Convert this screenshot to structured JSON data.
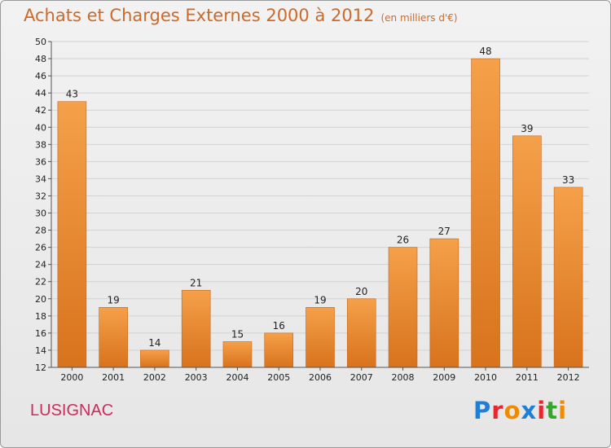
{
  "header": {
    "title": "Achats et Charges Externes 2000 à 2012",
    "subtitle": "(en milliers d'€)"
  },
  "commune": "LUSIGNAC",
  "logo": {
    "text": "Proxiti",
    "colors": [
      "#1f7fd6",
      "#e8262d",
      "#f08a00",
      "#1f7fd6",
      "#e8262d",
      "#36a62a",
      "#f08a00"
    ]
  },
  "chart_data": {
    "type": "bar",
    "title": "Achats et Charges Externes 2000 à 2012",
    "subtitle": "(en milliers d'€)",
    "categories": [
      "2000",
      "2001",
      "2002",
      "2003",
      "2004",
      "2005",
      "2006",
      "2007",
      "2008",
      "2009",
      "2010",
      "2011",
      "2012"
    ],
    "values": [
      43,
      19,
      14,
      21,
      15,
      16,
      19,
      20,
      26,
      27,
      48,
      39,
      33
    ],
    "ylim": [
      12,
      50
    ],
    "yticks": [
      12,
      14,
      16,
      18,
      20,
      22,
      24,
      26,
      28,
      30,
      32,
      34,
      36,
      38,
      40,
      42,
      44,
      46,
      48,
      50
    ],
    "grid": true,
    "bar_color": "#f0923a"
  }
}
